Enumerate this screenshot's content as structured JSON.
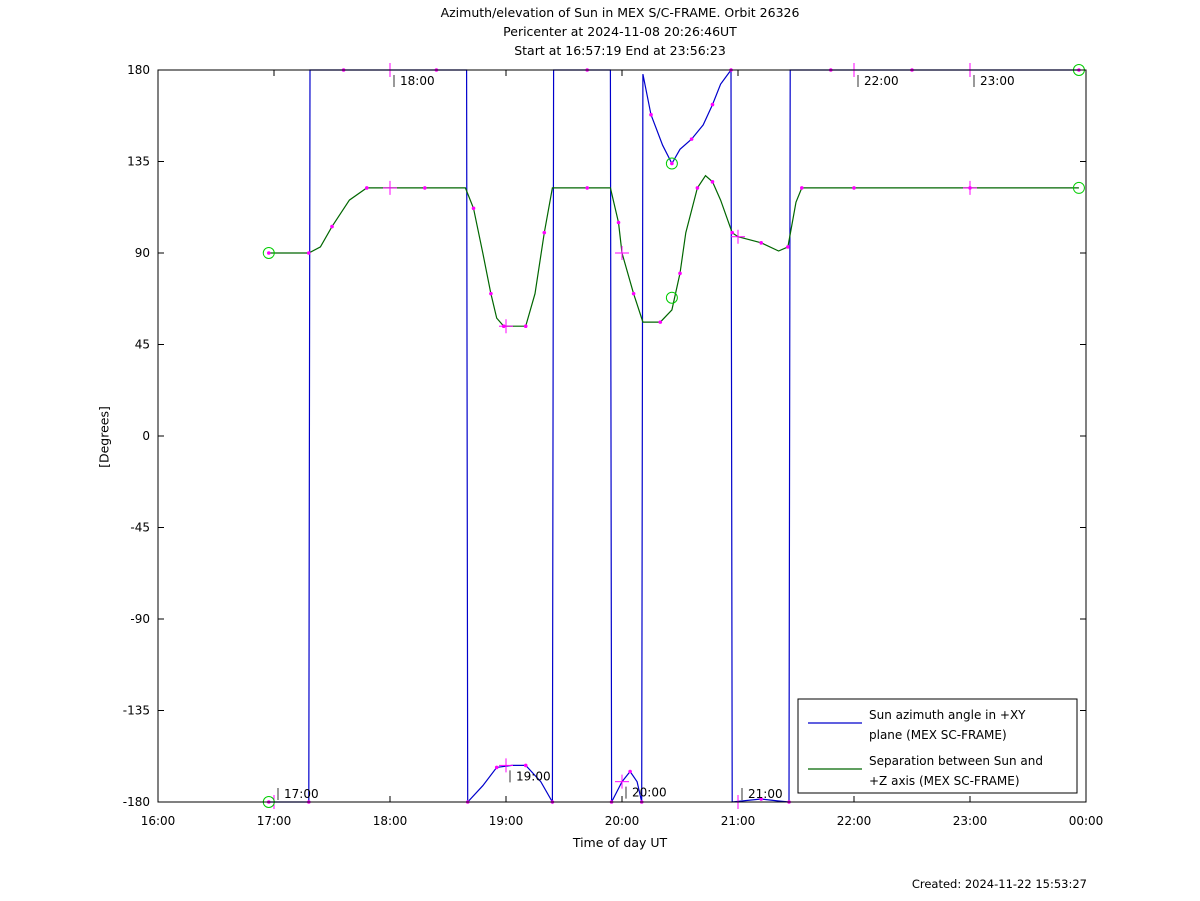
{
  "chart_data": {
    "type": "line",
    "title": "Azimuth/elevation of Sun in MEX S/C-FRAME.  Orbit 26326",
    "subtitle_lines": [
      "Pericenter at 2024-11-08 20:26:46UT",
      "Start at 16:57:19 End at 23:56:23"
    ],
    "xlabel": "Time of day UT",
    "ylabel": "[Degrees]",
    "xlim_hours": [
      16,
      24
    ],
    "ylim": [
      -180,
      180
    ],
    "x_tick_labels": [
      "16:00",
      "17:00",
      "18:00",
      "19:00",
      "20:00",
      "21:00",
      "22:00",
      "23:00",
      "00:00"
    ],
    "y_ticks": [
      180,
      135,
      90,
      45,
      0,
      -45,
      -90,
      -135,
      -180
    ],
    "legend_placement": "bottom-right",
    "series": [
      {
        "name": "Sun azimuth angle in +XY plane (MEX SC-FRAME)",
        "color": "#0000cc",
        "points": [
          [
            16.955,
            -180
          ],
          [
            17.1,
            -180
          ],
          [
            17.3,
            -180
          ],
          [
            17.31,
            180
          ],
          [
            17.6,
            180
          ],
          [
            18.0,
            180
          ],
          [
            18.4,
            180
          ],
          [
            18.66,
            180
          ],
          [
            18.67,
            -180
          ],
          [
            18.8,
            -172
          ],
          [
            18.92,
            -163
          ],
          [
            19.05,
            -162
          ],
          [
            19.17,
            -162
          ],
          [
            19.3,
            -170
          ],
          [
            19.4,
            -180
          ],
          [
            19.41,
            180
          ],
          [
            19.7,
            180
          ],
          [
            19.9,
            180
          ],
          [
            19.91,
            -180
          ],
          [
            20.0,
            -170
          ],
          [
            20.07,
            -165
          ],
          [
            20.13,
            -170
          ],
          [
            20.17,
            -180
          ],
          [
            20.18,
            178
          ],
          [
            20.25,
            158
          ],
          [
            20.35,
            143
          ],
          [
            20.43,
            134
          ],
          [
            20.5,
            141
          ],
          [
            20.6,
            146
          ],
          [
            20.7,
            153
          ],
          [
            20.78,
            163
          ],
          [
            20.85,
            173
          ],
          [
            20.94,
            180
          ],
          [
            20.95,
            -180
          ],
          [
            21.2,
            -178.5
          ],
          [
            21.35,
            -179.5
          ],
          [
            21.44,
            -180
          ],
          [
            21.45,
            180
          ],
          [
            21.8,
            180
          ],
          [
            22.0,
            180
          ],
          [
            22.5,
            180
          ],
          [
            23.0,
            180
          ],
          [
            23.939,
            180
          ]
        ],
        "time_labels": [
          {
            "text": "18:00",
            "x": 18.0,
            "y": 180
          },
          {
            "text": "22:00",
            "x": 22.0,
            "y": 180
          },
          {
            "text": "23:00",
            "x": 23.0,
            "y": 180
          },
          {
            "text": "17:00",
            "x": 17.0,
            "y": -180
          },
          {
            "text": "19:00",
            "x": 19.0,
            "y": -162
          },
          {
            "text": "20:00",
            "x": 20.0,
            "y": -170
          },
          {
            "text": "21:00",
            "x": 21.0,
            "y": -180
          }
        ]
      },
      {
        "name": "Separation between Sun and +Z axis (MEX SC-FRAME)",
        "color": "#006600",
        "points": [
          [
            16.955,
            90
          ],
          [
            17.2,
            90
          ],
          [
            17.3,
            90
          ],
          [
            17.4,
            93
          ],
          [
            17.5,
            103
          ],
          [
            17.65,
            116
          ],
          [
            17.8,
            122
          ],
          [
            18.0,
            122
          ],
          [
            18.3,
            122
          ],
          [
            18.65,
            122
          ],
          [
            18.72,
            112
          ],
          [
            18.8,
            90
          ],
          [
            18.87,
            70
          ],
          [
            18.92,
            58
          ],
          [
            18.98,
            54
          ],
          [
            19.05,
            54
          ],
          [
            19.17,
            54
          ],
          [
            19.25,
            70
          ],
          [
            19.33,
            100
          ],
          [
            19.4,
            122
          ],
          [
            19.7,
            122
          ],
          [
            19.9,
            122
          ],
          [
            19.97,
            105
          ],
          [
            20.0,
            90
          ],
          [
            20.1,
            70
          ],
          [
            20.18,
            56
          ],
          [
            20.33,
            56
          ],
          [
            20.43,
            62
          ],
          [
            20.5,
            80
          ],
          [
            20.55,
            100
          ],
          [
            20.65,
            122
          ],
          [
            20.72,
            128
          ],
          [
            20.78,
            125
          ],
          [
            20.85,
            116
          ],
          [
            20.95,
            100
          ],
          [
            21.0,
            98
          ],
          [
            21.2,
            95
          ],
          [
            21.35,
            91
          ],
          [
            21.43,
            93
          ],
          [
            21.5,
            115
          ],
          [
            21.55,
            122
          ],
          [
            21.8,
            122
          ],
          [
            22.0,
            122
          ],
          [
            22.5,
            122
          ],
          [
            23.0,
            122
          ],
          [
            23.939,
            122
          ]
        ]
      }
    ],
    "markers": {
      "start_end_circles": [
        [
          16.955,
          90
        ],
        [
          16.955,
          -180
        ],
        [
          23.939,
          180
        ],
        [
          23.939,
          122
        ],
        [
          20.43,
          134
        ],
        [
          20.43,
          68
        ]
      ],
      "hour_crosses": [
        [
          18.0,
          180
        ],
        [
          22.0,
          180
        ],
        [
          23.0,
          180
        ],
        [
          18.0,
          122
        ],
        [
          19.0,
          54
        ],
        [
          20.0,
          90
        ],
        [
          21.0,
          98
        ],
        [
          23.0,
          122
        ],
        [
          19.0,
          -162
        ],
        [
          20.0,
          -170
        ],
        [
          21.0,
          -180
        ],
        [
          17.0,
          -180
        ]
      ]
    }
  },
  "legend": [
    {
      "line1": "Sun azimuth angle in +XY",
      "line2": "plane (MEX SC-FRAME)",
      "color": "#0000cc"
    },
    {
      "line1": "Separation between Sun and",
      "line2": "+Z axis (MEX SC-FRAME)",
      "color": "#006600"
    }
  ],
  "footer": {
    "created": "Created: 2024-11-22 15:53:27"
  },
  "colors": {
    "azimuth": "#0000cc",
    "separation": "#006600",
    "markers": "#ff00ff",
    "circles": "#00cc00"
  }
}
